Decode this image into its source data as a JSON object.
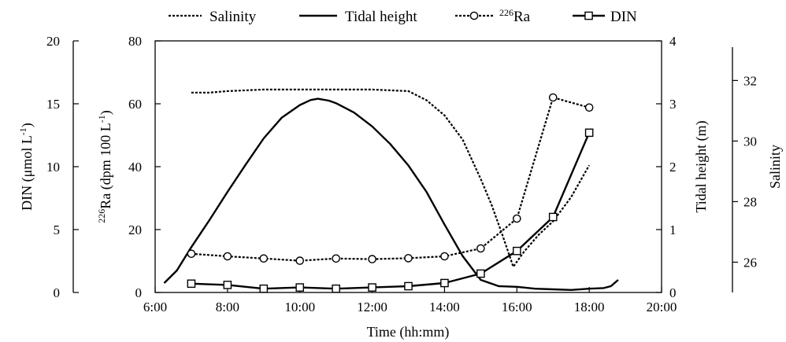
{
  "chart_data": {
    "type": "line",
    "xlabel": "Time (hh:mm)",
    "x_ticks": [
      "6:00",
      "8:00",
      "10:00",
      "12:00",
      "14:00",
      "16:00",
      "18:00",
      "20:00"
    ],
    "x_range_hours": [
      6,
      20
    ],
    "axes": {
      "din": {
        "label_main": "DIN (μmol L",
        "label_sup": "-1",
        "label_tail": ")",
        "range": [
          0,
          20
        ],
        "ticks": [
          "0",
          "5",
          "10",
          "15",
          "20"
        ]
      },
      "ra": {
        "label_sup": "226",
        "label_main": "Ra (dpm 100 L",
        "label_sup2": "-1",
        "label_tail": ")",
        "range": [
          0,
          80
        ],
        "ticks": [
          "0",
          "20",
          "40",
          "60",
          "80"
        ]
      },
      "tide": {
        "label": "Tidal height (m)",
        "range": [
          0,
          4
        ],
        "ticks": [
          "0",
          "1",
          "2",
          "3",
          "4"
        ]
      },
      "salinity": {
        "label": "Salinity",
        "range": [
          25,
          33.1
        ],
        "ticks": [
          "26",
          "28",
          "30",
          "32"
        ]
      }
    },
    "legend": {
      "placement": "top",
      "items": [
        {
          "name": "Salinity",
          "sup": "",
          "style": "dotted"
        },
        {
          "name": "Tidal height",
          "sup": "",
          "style": "solid"
        },
        {
          "name": "Ra",
          "sup": "226",
          "style": "dotted-circle"
        },
        {
          "name": "DIN",
          "sup": "",
          "style": "solid-square"
        }
      ]
    },
    "series": [
      {
        "key": "salinity",
        "style": "dotted",
        "axis": "salinity",
        "x": [
          7.0,
          7.5,
          8.0,
          9.0,
          10.0,
          11.0,
          12.0,
          13.0,
          13.5,
          14.0,
          14.5,
          15.0,
          15.3,
          15.6,
          15.9,
          16.2,
          16.6,
          17.0,
          17.5,
          18.0
        ],
        "y": [
          31.6,
          31.6,
          31.65,
          31.7,
          31.7,
          31.7,
          31.7,
          31.65,
          31.35,
          30.85,
          30.05,
          28.75,
          27.9,
          26.9,
          25.85,
          26.35,
          26.9,
          27.35,
          28.15,
          29.2
        ]
      },
      {
        "key": "tide",
        "style": "solid",
        "axis": "tide",
        "x": [
          6.25,
          6.6,
          7.0,
          7.5,
          8.0,
          8.5,
          9.0,
          9.5,
          10.0,
          10.3,
          10.5,
          10.8,
          11.0,
          11.5,
          12.0,
          12.5,
          13.0,
          13.5,
          14.0,
          14.5,
          15.0,
          15.5,
          16.0,
          16.5,
          17.0,
          17.5,
          18.0,
          18.4,
          18.6,
          18.8
        ],
        "y": [
          0.15,
          0.35,
          0.72,
          1.15,
          1.6,
          2.03,
          2.45,
          2.78,
          2.98,
          3.06,
          3.08,
          3.05,
          3.01,
          2.86,
          2.64,
          2.36,
          2.02,
          1.6,
          1.08,
          0.58,
          0.2,
          0.1,
          0.09,
          0.06,
          0.05,
          0.04,
          0.06,
          0.07,
          0.1,
          0.2
        ]
      },
      {
        "key": "ra",
        "style": "dotted-circle",
        "axis": "ra",
        "x": [
          7,
          8,
          9,
          10,
          11,
          12,
          13,
          14,
          15,
          16,
          17,
          18
        ],
        "y": [
          12.3,
          11.5,
          10.8,
          10.1,
          10.8,
          10.6,
          10.9,
          11.5,
          14.0,
          23.5,
          62.0,
          58.8
        ]
      },
      {
        "key": "din",
        "style": "solid-square",
        "axis": "din",
        "x": [
          7,
          8,
          9,
          10,
          11,
          12,
          13,
          14,
          15,
          16,
          17,
          18
        ],
        "y": [
          0.7,
          0.6,
          0.3,
          0.4,
          0.3,
          0.4,
          0.5,
          0.75,
          1.5,
          3.3,
          6.0,
          12.7
        ]
      }
    ]
  }
}
